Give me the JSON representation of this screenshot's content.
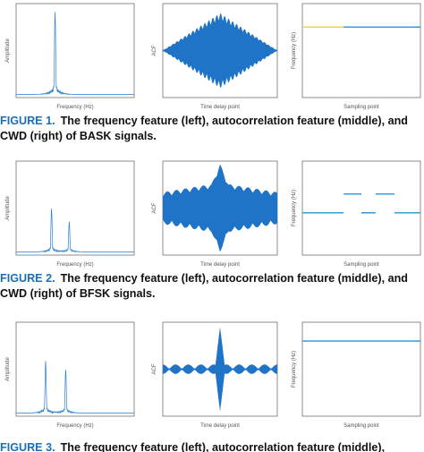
{
  "figures": [
    {
      "panels": [
        {
          "ylabel": "Amplitude",
          "xlabel": "Frequency (Hz)"
        },
        {
          "ylabel": "ACF",
          "xlabel": "Time delay point"
        },
        {
          "ylabel": "Frequency (Hz)",
          "xlabel": "Sampling point"
        }
      ],
      "caption_label": "FIGURE 1.",
      "caption_text": "The frequency feature (left), autocorrelation feature (middle), and CWD (right) of BASK signals."
    },
    {
      "panels": [
        {
          "ylabel": "Amplitude",
          "xlabel": "Frequency (Hz)"
        },
        {
          "ylabel": "ACF",
          "xlabel": "Time delay point"
        },
        {
          "ylabel": "Frequency (Hz)",
          "xlabel": "Sampling point"
        }
      ],
      "caption_label": "FIGURE 2.",
      "caption_text": "The frequency feature (left), autocorrelation feature (middle), and CWD (right) of BFSK signals."
    },
    {
      "panels": [
        {
          "ylabel": "Amplitude",
          "xlabel": "Frequency (Hz)"
        },
        {
          "ylabel": "ACF",
          "xlabel": "Time delay point"
        },
        {
          "ylabel": "Frequency (Hz)",
          "xlabel": "Sampling point"
        }
      ],
      "caption_label": "FIGURE 3.",
      "caption_text": "The frequency feature (left), autocorrelation feature (middle),"
    }
  ]
}
